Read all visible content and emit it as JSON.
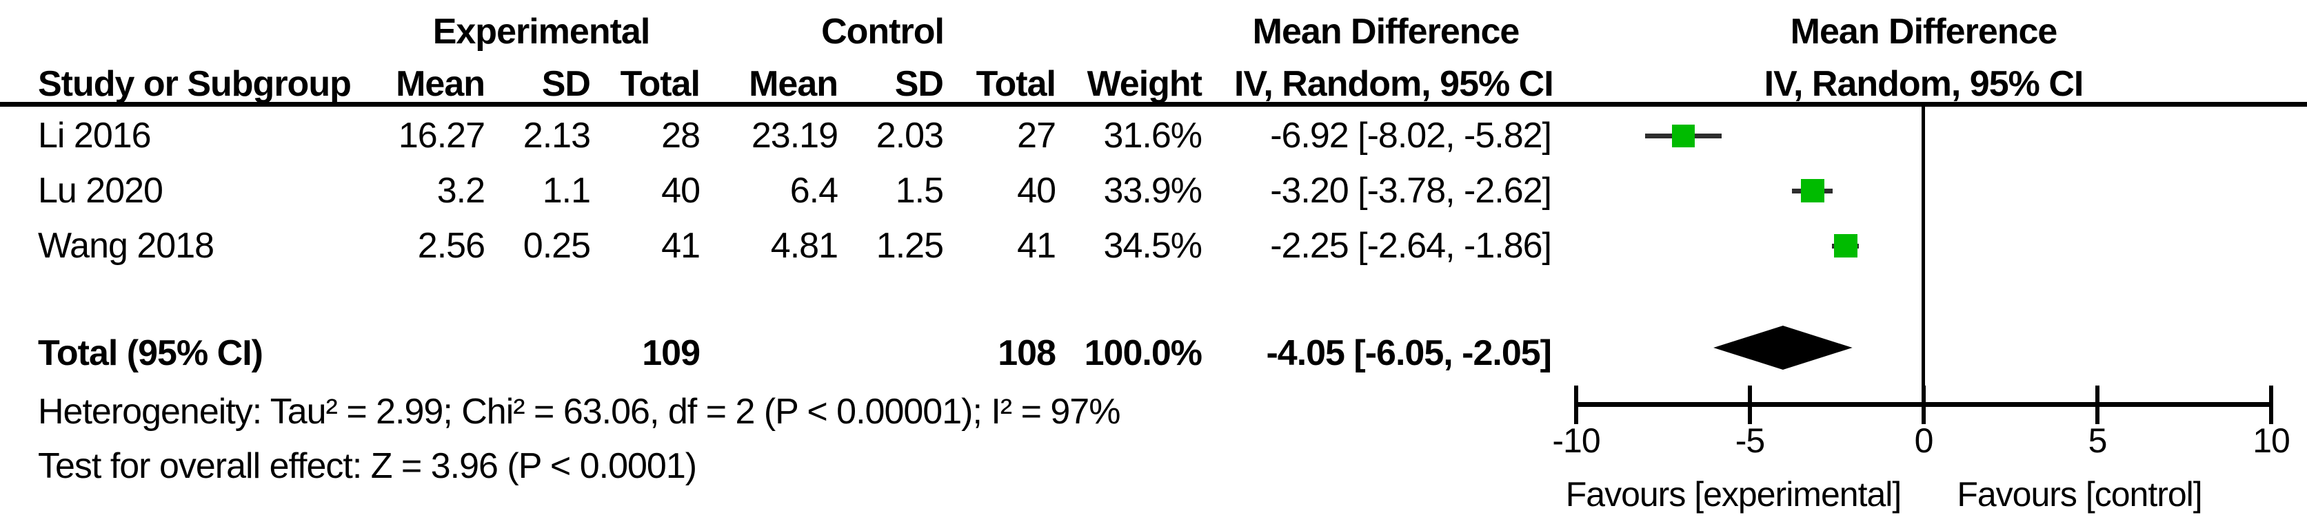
{
  "table": {
    "group_headers": [
      "Experimental",
      "Control",
      "Mean Difference"
    ],
    "col_headers": [
      "Study or Subgroup",
      "Mean",
      "SD",
      "Total",
      "Mean",
      "SD",
      "Total",
      "Weight",
      "IV, Random, 95% CI"
    ],
    "rows": [
      {
        "study": "Li 2016",
        "exp_mean": "16.27",
        "exp_sd": "2.13",
        "exp_total": "28",
        "ctrl_mean": "23.19",
        "ctrl_sd": "2.03",
        "ctrl_total": "27",
        "weight": "31.6%",
        "ci_text": "-6.92 [-8.02, -5.82]"
      },
      {
        "study": "Lu 2020",
        "exp_mean": "3.2",
        "exp_sd": "1.1",
        "exp_total": "40",
        "ctrl_mean": "6.4",
        "ctrl_sd": "1.5",
        "ctrl_total": "40",
        "weight": "33.9%",
        "ci_text": "-3.20 [-3.78, -2.62]"
      },
      {
        "study": "Wang 2018",
        "exp_mean": "2.56",
        "exp_sd": "0.25",
        "exp_total": "41",
        "ctrl_mean": "4.81",
        "ctrl_sd": "1.25",
        "ctrl_total": "41",
        "weight": "34.5%",
        "ci_text": "-2.25 [-2.64, -1.86]"
      }
    ],
    "total_row": {
      "label": "Total (95% CI)",
      "exp_total": "109",
      "ctrl_total": "108",
      "weight": "100.0%",
      "ci_text": "-4.05 [-6.05, -2.05]"
    },
    "heterogeneity": "Heterogeneity: Tau² = 2.99; Chi² = 63.06, df = 2 (P < 0.00001); I² = 97%",
    "overall_effect": "Test for overall effect: Z = 3.96 (P < 0.0001)"
  },
  "plot": {
    "header_line1": "Mean Difference",
    "header_line2": "IV, Random, 95% CI",
    "favours_left": "Favours [experimental]",
    "favours_right": "Favours [control]",
    "square_color": "#00bb00",
    "diamond_color": "#000000",
    "line_color": "#000000"
  },
  "chart_data": {
    "type": "forest",
    "title": "Mean Difference, IV, Random, 95% CI",
    "x_axis": {
      "range": [
        -10,
        10
      ],
      "ticks": [
        -10,
        -5,
        0,
        5,
        10
      ],
      "zero_line": 0
    },
    "studies": [
      {
        "label": "Li 2016",
        "md": -6.92,
        "ci_low": -8.02,
        "ci_high": -5.82,
        "weight_pct": 31.6
      },
      {
        "label": "Lu 2020",
        "md": -3.2,
        "ci_low": -3.78,
        "ci_high": -2.62,
        "weight_pct": 33.9
      },
      {
        "label": "Wang 2018",
        "md": -2.25,
        "ci_low": -2.64,
        "ci_high": -1.86,
        "weight_pct": 34.5
      }
    ],
    "total": {
      "label": "Total (95% CI)",
      "md": -4.05,
      "ci_low": -6.05,
      "ci_high": -2.05,
      "weight_pct": 100.0
    },
    "heterogeneity": {
      "tau2": 2.99,
      "chi2": 63.06,
      "df": 2,
      "p": "< 0.00001",
      "i2_pct": 97
    },
    "overall_effect": {
      "z": 3.96,
      "p": "< 0.0001"
    },
    "favours": [
      "Favours [experimental]",
      "Favours [control]"
    ]
  }
}
